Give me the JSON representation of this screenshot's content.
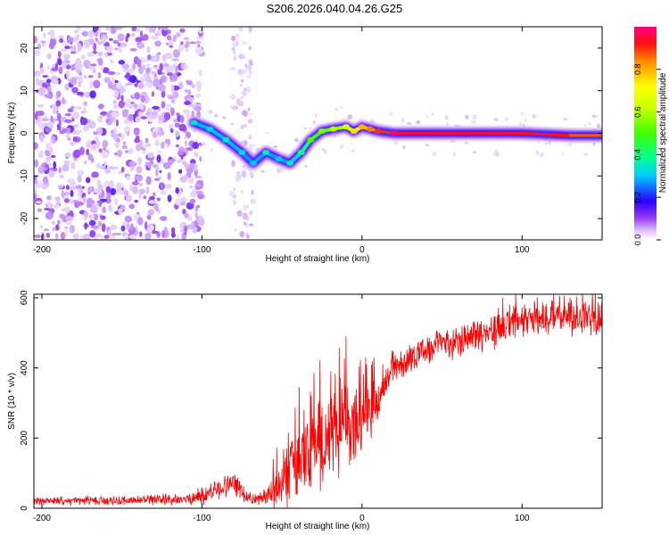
{
  "title": "S206.2026.040.04.26.G25",
  "colors": {
    "snr_line": "#ff0000",
    "axis": "#000000"
  },
  "chart_data": [
    {
      "type": "heatmap",
      "title": "S206.2026.040.04.26.G25",
      "xlabel": "Height of straight line (km)",
      "ylabel": "Frequency (Hz)",
      "xlim": [
        -205,
        150
      ],
      "ylim": [
        -25,
        25
      ],
      "xticks": [
        -200,
        -100,
        0,
        100
      ],
      "yticks": [
        -20,
        -10,
        0,
        10,
        20
      ],
      "colorbar": {
        "label": "Normalized spectral amplitude",
        "range": [
          0,
          1
        ],
        "ticks": [
          "0.0",
          "0.2",
          "0.4",
          "0.6",
          "0.8"
        ]
      },
      "ridge": {
        "x": [
          -105,
          -95,
          -85,
          -75,
          -68,
          -60,
          -52,
          -45,
          -38,
          -32,
          -25,
          -18,
          -10,
          -5,
          0,
          5,
          10,
          20,
          60,
          100,
          130,
          150
        ],
        "y": [
          2.5,
          1.0,
          -1.5,
          -4.5,
          -7.0,
          -4.5,
          -6.0,
          -7.0,
          -4.5,
          -1.5,
          0.5,
          1.0,
          1.5,
          0.5,
          1.5,
          1.0,
          0.5,
          0.0,
          0.0,
          0.0,
          -0.5,
          -0.5
        ],
        "peak_amplitude": [
          0.3,
          0.28,
          0.3,
          0.28,
          0.25,
          0.3,
          0.25,
          0.3,
          0.35,
          0.45,
          0.5,
          0.55,
          0.6,
          0.7,
          0.75,
          0.8,
          0.85,
          0.95,
          0.95,
          0.95,
          0.9,
          0.85
        ]
      }
    },
    {
      "type": "line",
      "xlabel": "Height of straight line (km)",
      "ylabel": "SNR (10 * v/v)",
      "xlim": [
        -205,
        150
      ],
      "ylim": [
        0,
        610
      ],
      "xticks": [
        -200,
        -100,
        0,
        100
      ],
      "yticks": [
        0,
        200,
        400,
        600
      ],
      "envelope": {
        "x": [
          -205,
          -150,
          -110,
          -100,
          -90,
          -80,
          -75,
          -70,
          -65,
          -60,
          -50,
          -40,
          -30,
          -20,
          -10,
          0,
          10,
          20,
          30,
          40,
          50,
          60,
          70,
          80,
          90,
          100,
          110,
          120,
          130,
          140,
          150
        ],
        "mean": [
          20,
          22,
          25,
          35,
          55,
          70,
          50,
          30,
          25,
          30,
          70,
          130,
          170,
          200,
          230,
          250,
          320,
          400,
          430,
          450,
          470,
          480,
          495,
          505,
          520,
          530,
          545,
          550,
          545,
          550,
          540
        ],
        "noise_amplitude": [
          10,
          12,
          15,
          25,
          30,
          30,
          25,
          15,
          15,
          30,
          70,
          100,
          110,
          120,
          110,
          90,
          60,
          40,
          40,
          40,
          40,
          45,
          45,
          50,
          50,
          50,
          55,
          55,
          60,
          60,
          60
        ],
        "spikes": [
          {
            "x": -10,
            "y": 490
          },
          {
            "x": 88,
            "y": 600
          },
          {
            "x": 96,
            "y": 610
          },
          {
            "x": 130,
            "y": 600
          }
        ]
      }
    }
  ]
}
